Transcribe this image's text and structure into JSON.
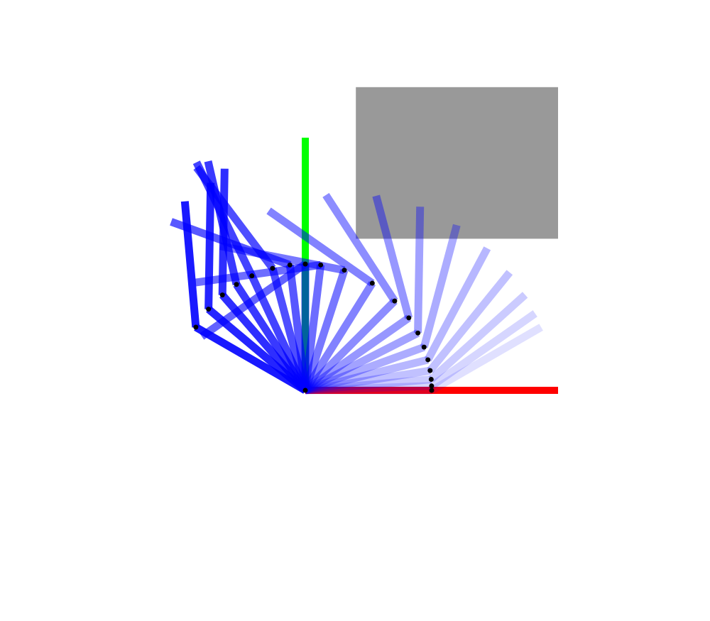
{
  "diagram": {
    "type": "two-link-arm-motion-trace",
    "colors": {
      "background": "#ffffff",
      "link": "#0000ff",
      "joint": "#000000",
      "obstacle": "#999999",
      "x_axis": "#ff0000",
      "y_axis": "#00ff00"
    },
    "arm": {
      "link1_length": 1.0,
      "link2_length": 1.0,
      "frame_count": 20
    },
    "trajectory_deg": [
      {
        "theta1": 0,
        "theta2": 30
      },
      {
        "theta1": 2,
        "theta2": 33
      },
      {
        "theta1": 5,
        "theta2": 37
      },
      {
        "theta1": 9,
        "theta2": 42
      },
      {
        "theta1": 14,
        "theta2": 48
      },
      {
        "theta1": 20,
        "theta2": 55
      },
      {
        "theta1": 27,
        "theta2": 62
      },
      {
        "theta1": 35,
        "theta2": 70
      },
      {
        "theta1": 45,
        "theta2": 78
      },
      {
        "theta1": 58,
        "theta2": 87
      },
      {
        "theta1": 72,
        "theta2": 97
      },
      {
        "theta1": 83,
        "theta2": 105
      },
      {
        "theta1": 90,
        "theta2": 125
      },
      {
        "theta1": 97,
        "theta2": 63
      },
      {
        "theta1": 105,
        "theta2": 22
      },
      {
        "theta1": 115,
        "theta2": 1
      },
      {
        "theta1": 123,
        "theta2": -20
      },
      {
        "theta1": 131,
        "theta2": -42
      },
      {
        "theta1": 140,
        "theta2": -51
      },
      {
        "theta1": 150,
        "theta2": -55
      }
    ],
    "obstacle": {
      "label": "",
      "x_range": [
        0.4,
        2.0
      ],
      "y_range": [
        1.2,
        2.4
      ]
    }
  }
}
